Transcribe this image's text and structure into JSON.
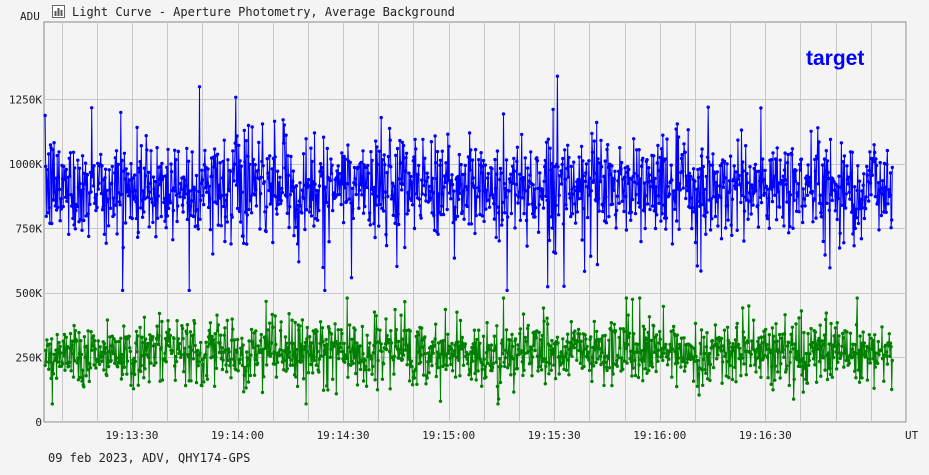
{
  "window": {
    "title": "Light Curve - Aperture Photometry, Average Background",
    "icon": "chart-window-icon"
  },
  "footer": {
    "info": "09 feb 2023, ADV, QHY174-GPS"
  },
  "colors": {
    "background": "#f4f4f4",
    "grid": "#c8c8c8",
    "axis": "#888888",
    "target": "#0000ff",
    "comparison": "#008000"
  },
  "chart_data": {
    "type": "scatter",
    "x_axis": {
      "unit": "UT",
      "ticks": [
        "19:13:30",
        "19:14:00",
        "19:14:30",
        "19:15:00",
        "19:15:30",
        "19:16:00",
        "19:16:30"
      ],
      "range": [
        "19:13:05",
        "19:17:10"
      ]
    },
    "y_axis": {
      "unit": "ADU",
      "ticks": [
        "0",
        "250K",
        "500K",
        "750K",
        "1000K",
        "1250K"
      ],
      "tick_values": [
        0,
        250000,
        500000,
        750000,
        1000000,
        1250000
      ],
      "range": [
        0,
        1550000
      ]
    },
    "grid": true,
    "annotation": "target",
    "series": [
      {
        "name": "target",
        "color": "#0000ff",
        "mean": 910000,
        "typical_min": 700000,
        "typical_max": 1100000,
        "min": 510000,
        "max": 1340000,
        "markers_and_lines": true
      },
      {
        "color": "#008000",
        "mean": 270000,
        "typical_min": 150000,
        "typical_max": 400000,
        "min": 70000,
        "max": 480000,
        "markers_and_lines": true
      }
    ]
  }
}
